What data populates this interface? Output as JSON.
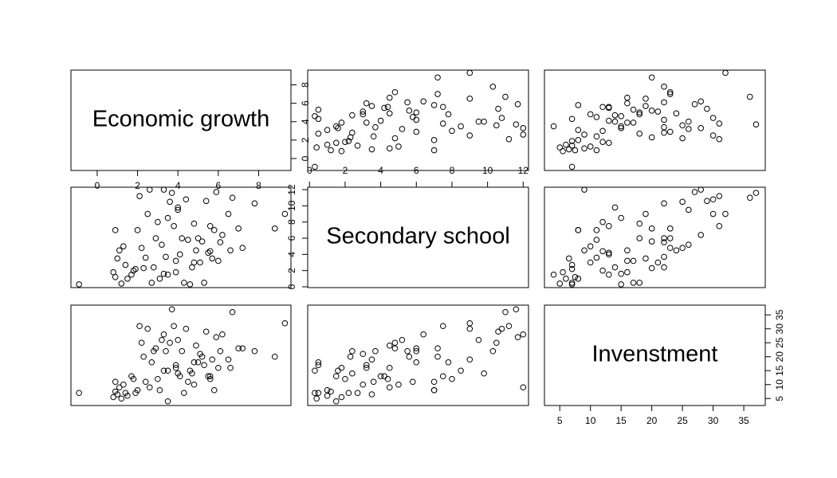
{
  "chart_data": {
    "type": "scatter_matrix",
    "variables": [
      {
        "name": "Economic growth",
        "lim": [
          -1.3,
          9.6
        ],
        "ticks": [
          0,
          2,
          4,
          6,
          8
        ],
        "values": [
          -0.9,
          0.8,
          0.9,
          1.0,
          1.1,
          1.2,
          1.4,
          1.5,
          1.7,
          1.8,
          2.0,
          2.1,
          2.2,
          2.3,
          2.5,
          2.6,
          2.7,
          2.8,
          3.0,
          3.1,
          3.2,
          3.3,
          3.4,
          3.5,
          3.5,
          3.6,
          3.7,
          3.8,
          3.9,
          4.0,
          4.1,
          4.2,
          4.3,
          4.4,
          4.5,
          4.6,
          4.7,
          4.8,
          4.9,
          5.0,
          5.1,
          5.2,
          5.3,
          5.4,
          5.5,
          5.6,
          5.7,
          5.8,
          5.9,
          6.0,
          6.2,
          6.5,
          6.6,
          6.7,
          7.0,
          7.2,
          7.8,
          8.8,
          9.3,
          1.3,
          2.4,
          3.9,
          4.0,
          5.6,
          2.9,
          3.3,
          1.9,
          4.8,
          6.1,
          0.9
        ]
      },
      {
        "name": "Secondary school",
        "lim": [
          -0.1,
          12.3
        ],
        "ticks": [
          0,
          2,
          4,
          6,
          8,
          10,
          12
        ],
        "values": [
          0.3,
          1.8,
          7.0,
          3.5,
          4.5,
          0.4,
          2.7,
          1.0,
          1.5,
          2.0,
          7.0,
          11.2,
          4.8,
          2.3,
          9.0,
          12.0,
          0.5,
          2.4,
          8.0,
          1.0,
          5.2,
          12.0,
          3.7,
          1.5,
          8.5,
          10.5,
          11.6,
          7.5,
          3.2,
          9.5,
          4.0,
          6.0,
          0.5,
          10.8,
          5.8,
          0.3,
          2.4,
          7.8,
          4.5,
          6.0,
          3.0,
          5.6,
          0.5,
          10.6,
          4.2,
          4.4,
          3.5,
          7.0,
          11.7,
          3.2,
          6.4,
          9.0,
          4.5,
          11.0,
          7.2,
          4.8,
          10.3,
          7.2,
          9.0,
          5.0,
          3.6,
          1.8,
          9.8,
          7.5,
          6.0,
          1.6,
          2.2,
          3.0,
          5.5,
          1.2
        ]
      },
      {
        "name": "Invenstment",
        "lim": [
          2.5,
          38.5
        ],
        "ticks": [
          5,
          10,
          15,
          20,
          25,
          30,
          35
        ],
        "values": [
          7,
          5.5,
          11,
          6.5,
          9,
          5,
          7,
          6,
          13,
          12,
          8,
          31,
          25,
          20,
          30,
          9,
          18,
          22,
          12,
          8,
          26,
          28,
          22,
          4,
          15,
          25,
          37,
          31,
          17,
          26,
          13,
          22,
          7,
          30,
          11,
          15,
          14,
          18,
          24,
          18,
          21,
          20,
          17,
          29,
          13,
          12,
          19,
          8,
          27,
          16,
          28,
          19,
          16,
          36,
          23,
          23,
          22,
          20,
          32,
          10,
          11,
          16,
          14,
          13,
          23,
          15,
          7,
          10,
          22,
          7.5
        ]
      }
    ]
  }
}
